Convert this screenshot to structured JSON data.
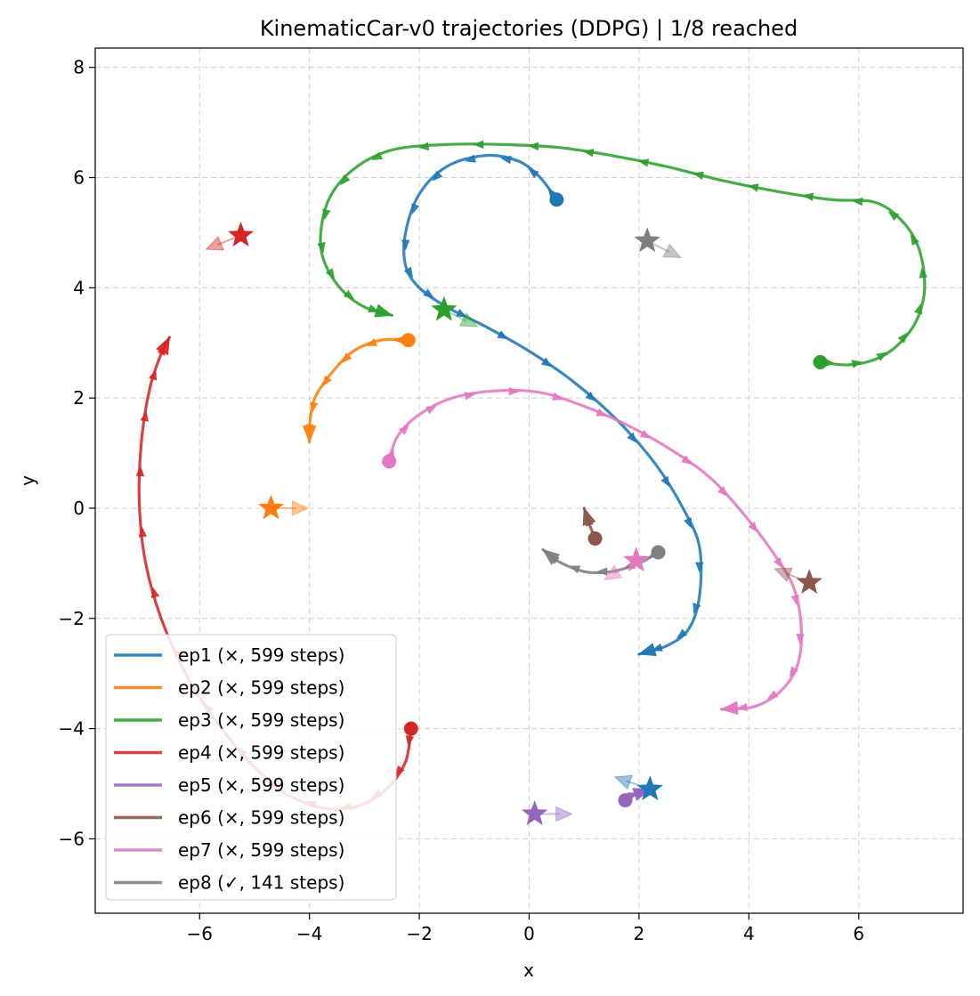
{
  "chart_data": {
    "type": "line",
    "title": "KinematicCar-v0 trajectories (DDPG) | 1/8 reached",
    "xlabel": "x",
    "ylabel": "y",
    "xlim": [
      -7.9,
      7.9
    ],
    "ylim": [
      -7.35,
      8.35
    ],
    "xticks": [
      -6,
      -4,
      -2,
      0,
      2,
      4,
      6
    ],
    "yticks": [
      -6,
      -4,
      -2,
      0,
      2,
      4,
      6,
      8
    ],
    "xtick_labels": [
      "−6",
      "−4",
      "−2",
      "0",
      "2",
      "4",
      "6"
    ],
    "ytick_labels": [
      "−6",
      "−4",
      "−2",
      "0",
      "2",
      "4",
      "6",
      "8"
    ],
    "grid": true,
    "legend_position": "lower-left",
    "series": [
      {
        "name": "ep1 (×, 599 steps)",
        "color": "#1f77b4",
        "start": [
          0.5,
          5.6
        ],
        "goal": [
          2.2,
          -5.1
        ],
        "goal_heading": [
          -2,
          0.7
        ],
        "points": [
          [
            0.5,
            5.6
          ],
          [
            0.2,
            6.0
          ],
          [
            -0.2,
            6.3
          ],
          [
            -0.8,
            6.4
          ],
          [
            -1.5,
            6.2
          ],
          [
            -2.0,
            5.7
          ],
          [
            -2.25,
            5.0
          ],
          [
            -2.25,
            4.4
          ],
          [
            -2.0,
            4.0
          ],
          [
            -1.5,
            3.65
          ],
          [
            -0.8,
            3.3
          ],
          [
            0.0,
            2.85
          ],
          [
            0.8,
            2.3
          ],
          [
            1.6,
            1.6
          ],
          [
            2.3,
            0.8
          ],
          [
            2.8,
            0.0
          ],
          [
            3.1,
            -0.7
          ],
          [
            3.1,
            -1.6
          ],
          [
            2.9,
            -2.2
          ],
          [
            2.5,
            -2.5
          ],
          [
            2.0,
            -2.65
          ]
        ]
      },
      {
        "name": "ep2 (×, 599 steps)",
        "color": "#ff7f0e",
        "start": [
          -2.2,
          3.05
        ],
        "goal": [
          -4.7,
          0.0
        ],
        "goal_heading": [
          1,
          0
        ],
        "points": [
          [
            -2.2,
            3.05
          ],
          [
            -2.7,
            3.05
          ],
          [
            -3.2,
            2.85
          ],
          [
            -3.6,
            2.45
          ],
          [
            -3.9,
            2.0
          ],
          [
            -4.0,
            1.5
          ],
          [
            -4.0,
            1.2
          ]
        ]
      },
      {
        "name": "ep3 (×, 599 steps)",
        "color": "#2ca02c",
        "start": [
          5.3,
          2.65
        ],
        "goal": [
          -1.55,
          3.6
        ],
        "goal_heading": [
          1,
          -0.5
        ],
        "points": [
          [
            5.3,
            2.65
          ],
          [
            5.8,
            2.6
          ],
          [
            6.3,
            2.7
          ],
          [
            6.7,
            2.95
          ],
          [
            7.05,
            3.4
          ],
          [
            7.2,
            4.0
          ],
          [
            7.1,
            4.7
          ],
          [
            6.8,
            5.2
          ],
          [
            6.3,
            5.55
          ],
          [
            5.5,
            5.6
          ],
          [
            4.5,
            5.75
          ],
          [
            3.5,
            5.95
          ],
          [
            2.5,
            6.2
          ],
          [
            1.5,
            6.4
          ],
          [
            0.5,
            6.55
          ],
          [
            -0.5,
            6.6
          ],
          [
            -1.5,
            6.6
          ],
          [
            -2.5,
            6.5
          ],
          [
            -3.2,
            6.15
          ],
          [
            -3.65,
            5.6
          ],
          [
            -3.8,
            4.9
          ],
          [
            -3.7,
            4.4
          ],
          [
            -3.4,
            3.95
          ],
          [
            -3.0,
            3.65
          ],
          [
            -2.5,
            3.5
          ]
        ]
      },
      {
        "name": "ep4 (×, 599 steps)",
        "color": "#d62728",
        "start": [
          -2.15,
          -4.0
        ],
        "goal": [
          -5.25,
          4.95
        ],
        "goal_heading": [
          -1,
          -0.4
        ],
        "points": [
          [
            -2.15,
            -4.0
          ],
          [
            -2.25,
            -4.6
          ],
          [
            -2.6,
            -5.1
          ],
          [
            -3.1,
            -5.4
          ],
          [
            -3.7,
            -5.45
          ],
          [
            -4.4,
            -5.2
          ],
          [
            -5.0,
            -4.7
          ],
          [
            -5.6,
            -4.0
          ],
          [
            -6.2,
            -3.1
          ],
          [
            -6.7,
            -2.0
          ],
          [
            -7.0,
            -0.9
          ],
          [
            -7.1,
            0.2
          ],
          [
            -7.05,
            1.3
          ],
          [
            -6.9,
            2.2
          ],
          [
            -6.7,
            2.8
          ],
          [
            -6.55,
            3.1
          ]
        ]
      },
      {
        "name": "ep5 (×, 599 steps)",
        "color": "#9467bd",
        "start": [
          1.75,
          -5.3
        ],
        "goal": [
          0.1,
          -5.55
        ],
        "goal_heading": [
          1,
          0
        ],
        "points": [
          [
            1.75,
            -5.3
          ],
          [
            1.9,
            -5.2
          ],
          [
            2.05,
            -5.15
          ],
          [
            2.2,
            -5.1
          ]
        ]
      },
      {
        "name": "ep6 (×, 599 steps)",
        "color": "#8c564b",
        "start": [
          1.2,
          -0.55
        ],
        "goal": [
          5.1,
          -1.35
        ],
        "goal_heading": [
          -1,
          0.4
        ],
        "points": [
          [
            1.2,
            -0.55
          ],
          [
            1.1,
            -0.3
          ],
          [
            1.0,
            0.0
          ]
        ]
      },
      {
        "name": "ep7 (×, 599 steps)",
        "color": "#e377c2",
        "start": [
          -2.55,
          0.85
        ],
        "goal": [
          1.95,
          -0.95
        ],
        "goal_heading": [
          -1,
          -0.6
        ],
        "points": [
          [
            -2.55,
            0.85
          ],
          [
            -2.4,
            1.3
          ],
          [
            -2.0,
            1.7
          ],
          [
            -1.4,
            2.0
          ],
          [
            -0.6,
            2.13
          ],
          [
            0.2,
            2.1
          ],
          [
            1.0,
            1.85
          ],
          [
            1.8,
            1.5
          ],
          [
            2.6,
            1.05
          ],
          [
            3.3,
            0.55
          ],
          [
            3.9,
            -0.1
          ],
          [
            4.4,
            -0.75
          ],
          [
            4.8,
            -1.4
          ],
          [
            4.95,
            -2.1
          ],
          [
            4.9,
            -2.8
          ],
          [
            4.6,
            -3.3
          ],
          [
            4.1,
            -3.6
          ],
          [
            3.5,
            -3.65
          ]
        ]
      },
      {
        "name": "ep8 (✓, 141 steps)",
        "color": "#7f7f7f",
        "start": [
          2.35,
          -0.8
        ],
        "goal": [
          2.15,
          4.85
        ],
        "goal_heading": [
          1,
          -0.5
        ],
        "points": [
          [
            2.35,
            -0.8
          ],
          [
            2.0,
            -1.0
          ],
          [
            1.5,
            -1.15
          ],
          [
            1.0,
            -1.15
          ],
          [
            0.5,
            -0.95
          ],
          [
            0.25,
            -0.75
          ]
        ]
      }
    ]
  }
}
